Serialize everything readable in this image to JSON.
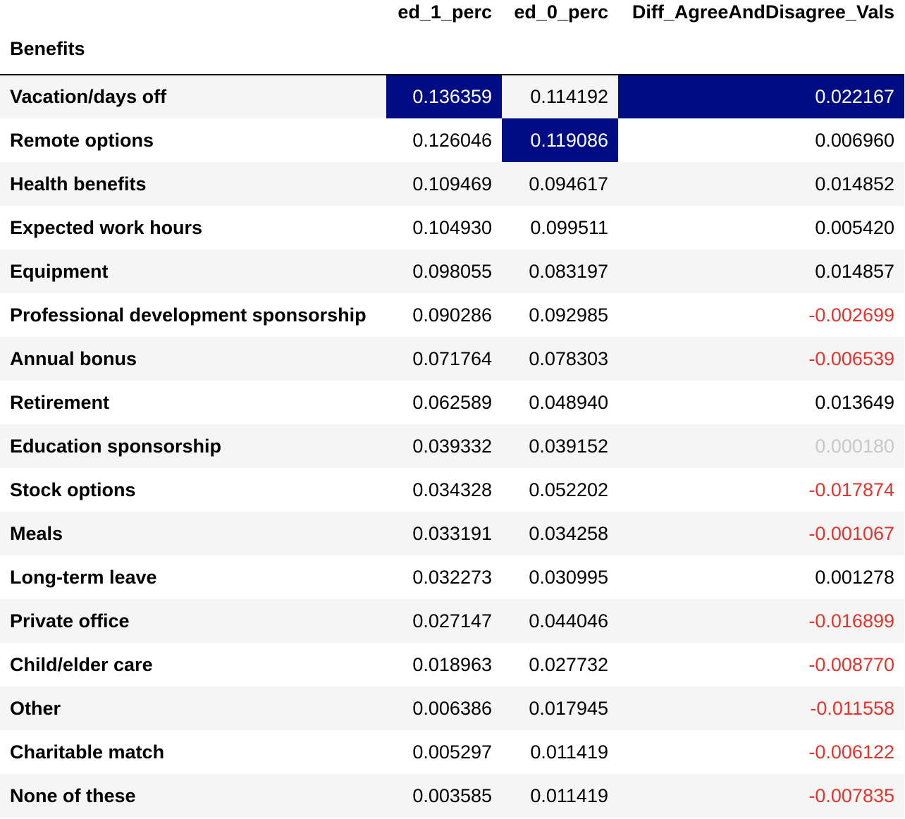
{
  "columns": [
    "ed_1_perc",
    "ed_0_perc",
    "Diff_AgreeAndDisagree_Vals"
  ],
  "index_name": "Benefits",
  "colors": {
    "highlight_bg": "#000c84",
    "highlight_text": "#ffffff",
    "negative": "#e5322a",
    "faint": "#c8c8c8",
    "stripe": "#f5f5f5"
  },
  "rows": [
    {
      "label": "Vacation/days off",
      "ed_1_perc": "0.136359",
      "ed_0_perc": "0.114192",
      "diff": "0.022167"
    },
    {
      "label": "Remote options",
      "ed_1_perc": "0.126046",
      "ed_0_perc": "0.119086",
      "diff": "0.006960"
    },
    {
      "label": "Health benefits",
      "ed_1_perc": "0.109469",
      "ed_0_perc": "0.094617",
      "diff": "0.014852"
    },
    {
      "label": "Expected work hours",
      "ed_1_perc": "0.104930",
      "ed_0_perc": "0.099511",
      "diff": "0.005420"
    },
    {
      "label": "Equipment",
      "ed_1_perc": "0.098055",
      "ed_0_perc": "0.083197",
      "diff": "0.014857"
    },
    {
      "label": "Professional development sponsorship",
      "ed_1_perc": "0.090286",
      "ed_0_perc": "0.092985",
      "diff": "-0.002699"
    },
    {
      "label": "Annual bonus",
      "ed_1_perc": "0.071764",
      "ed_0_perc": "0.078303",
      "diff": "-0.006539"
    },
    {
      "label": "Retirement",
      "ed_1_perc": "0.062589",
      "ed_0_perc": "0.048940",
      "diff": "0.013649"
    },
    {
      "label": "Education sponsorship",
      "ed_1_perc": "0.039332",
      "ed_0_perc": "0.039152",
      "diff": "0.000180"
    },
    {
      "label": "Stock options",
      "ed_1_perc": "0.034328",
      "ed_0_perc": "0.052202",
      "diff": "-0.017874"
    },
    {
      "label": "Meals",
      "ed_1_perc": "0.033191",
      "ed_0_perc": "0.034258",
      "diff": "-0.001067"
    },
    {
      "label": "Long-term leave",
      "ed_1_perc": "0.032273",
      "ed_0_perc": "0.030995",
      "diff": "0.001278"
    },
    {
      "label": "Private office",
      "ed_1_perc": "0.027147",
      "ed_0_perc": "0.044046",
      "diff": "-0.016899"
    },
    {
      "label": "Child/elder care",
      "ed_1_perc": "0.018963",
      "ed_0_perc": "0.027732",
      "diff": "-0.008770"
    },
    {
      "label": "Other",
      "ed_1_perc": "0.006386",
      "ed_0_perc": "0.017945",
      "diff": "-0.011558"
    },
    {
      "label": "Charitable match",
      "ed_1_perc": "0.005297",
      "ed_0_perc": "0.011419",
      "diff": "-0.006122"
    },
    {
      "label": "None of these",
      "ed_1_perc": "0.003585",
      "ed_0_perc": "0.011419",
      "diff": "-0.007835"
    }
  ]
}
